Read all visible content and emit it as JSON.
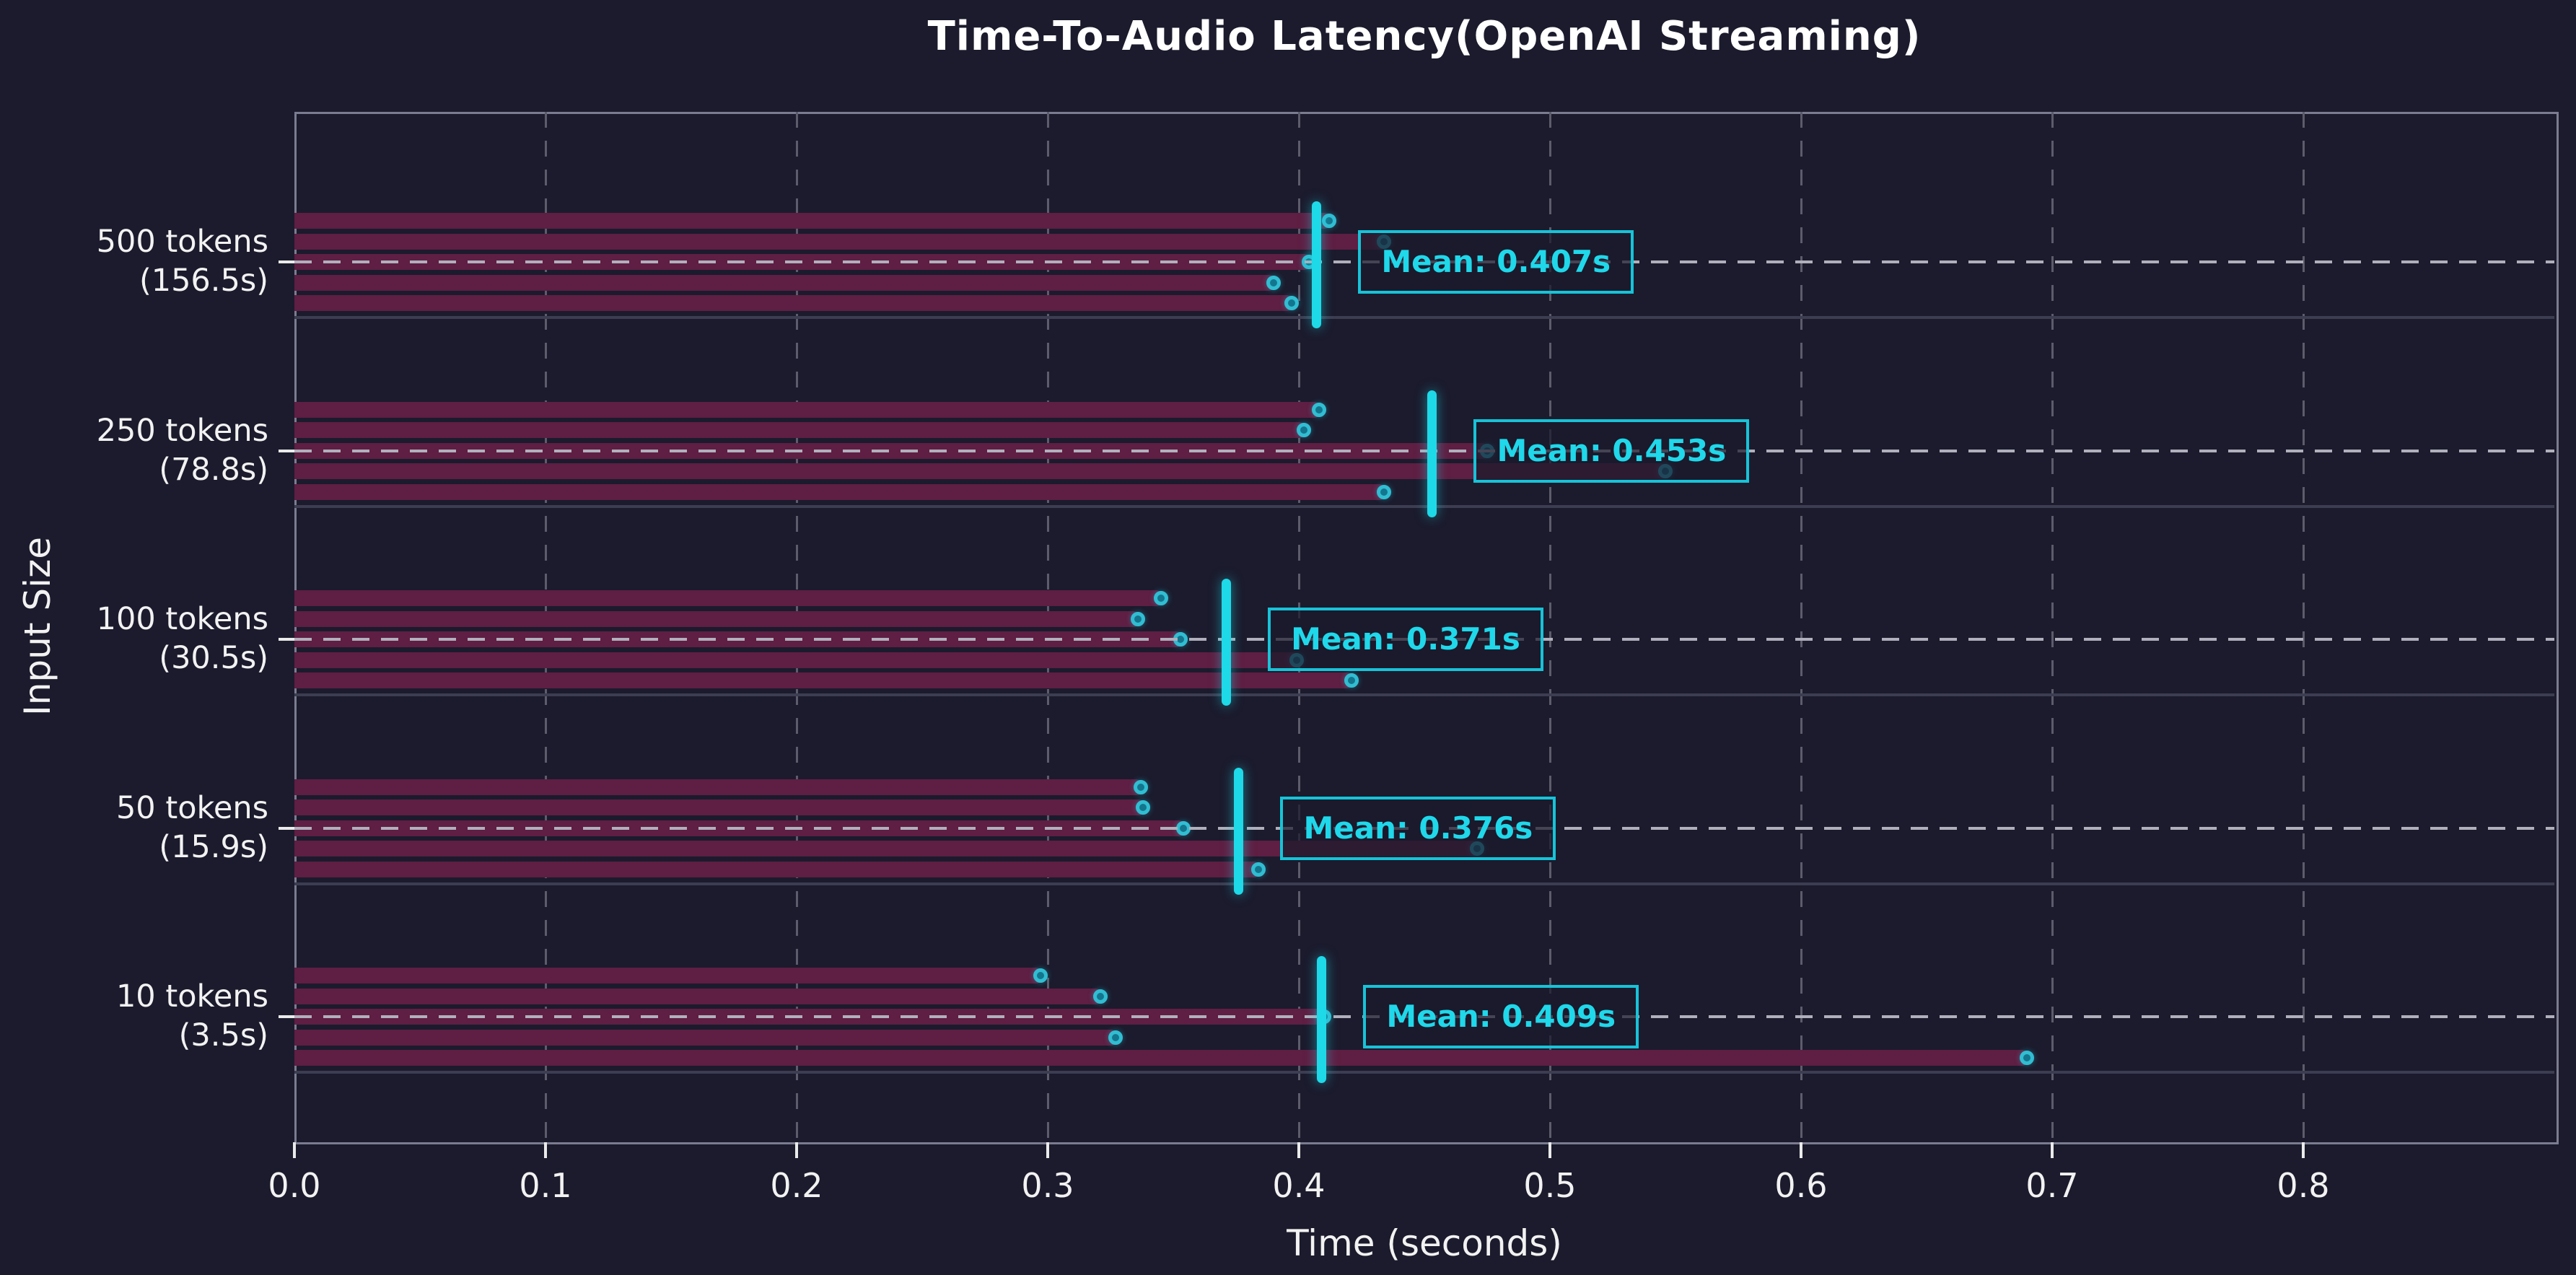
{
  "title": "Time-To-Audio Latency(OpenAI Streaming)",
  "colors": {
    "background": "#1b1b2d",
    "bar": "#5f1e43",
    "dot_ring": "#31bdd2",
    "dot_fill": "#14758e",
    "mean_accent": "#1ed9e8",
    "grid_vertical": "#5c5c6c",
    "grid_horizontal": "#b0b0bc",
    "text": "#f2f2f2"
  },
  "chart_data": {
    "type": "bar",
    "orientation": "horizontal",
    "title": "Time-To-Audio Latency(OpenAI Streaming)",
    "xlabel": "Time (seconds)",
    "ylabel": "Input Size",
    "xlim": [
      0,
      0.9
    ],
    "xtick_labels": [
      "0.0",
      "0.1",
      "0.2",
      "0.3",
      "0.4",
      "0.5",
      "0.6",
      "0.7",
      "0.8"
    ],
    "xtick_values": [
      0.0,
      0.1,
      0.2,
      0.3,
      0.4,
      0.5,
      0.6,
      0.7,
      0.8
    ],
    "grid": "dashed vertical gridlines at each x tick; dashed horizontal gridline at each category center",
    "legend": "none",
    "series_note": "each category shows 5 individual run bars (time-to-audio seconds), a dot at each bar end, a vertical cyan mean marker and a mean annotation box",
    "categories": [
      {
        "label": "500 tokens",
        "sublabel": "(156.5s)",
        "runs": [
          0.412,
          0.434,
          0.404,
          0.39,
          0.397
        ],
        "mean": 0.407,
        "mean_label": "Mean: 0.407s"
      },
      {
        "label": "250 tokens",
        "sublabel": "(78.8s)",
        "runs": [
          0.408,
          0.402,
          0.475,
          0.546,
          0.434
        ],
        "mean": 0.453,
        "mean_label": "Mean: 0.453s"
      },
      {
        "label": "100 tokens",
        "sublabel": "(30.5s)",
        "runs": [
          0.345,
          0.336,
          0.353,
          0.399,
          0.421
        ],
        "mean": 0.371,
        "mean_label": "Mean: 0.371s"
      },
      {
        "label": "50 tokens",
        "sublabel": "(15.9s)",
        "runs": [
          0.337,
          0.338,
          0.354,
          0.471,
          0.384
        ],
        "mean": 0.376,
        "mean_label": "Mean: 0.376s"
      },
      {
        "label": "10 tokens",
        "sublabel": "(3.5s)",
        "runs": [
          0.297,
          0.321,
          0.41,
          0.327,
          0.69
        ],
        "mean": 0.409,
        "mean_label": "Mean: 0.409s"
      }
    ]
  }
}
